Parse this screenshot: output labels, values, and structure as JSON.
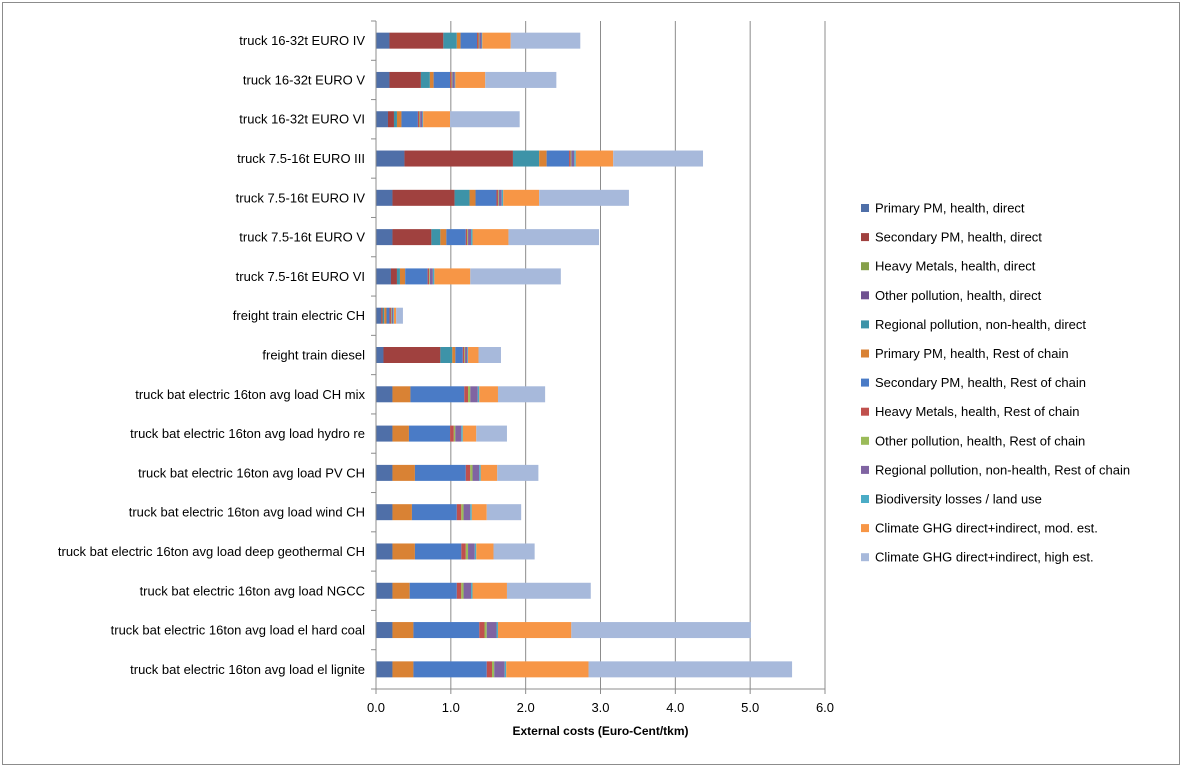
{
  "chart_data": {
    "type": "bar",
    "orientation": "horizontal",
    "stacked": true,
    "title": "",
    "xlabel": "External costs (Euro-Cent/tkm)",
    "ylabel": "",
    "xlim": [
      0,
      6
    ],
    "xticks": [
      "0.0",
      "1.0",
      "2.0",
      "3.0",
      "4.0",
      "5.0",
      "6.0"
    ],
    "grid": "vertical",
    "legend_position": "right",
    "categories": [
      "truck 16-32t EURO IV",
      "truck 16-32t EURO V",
      "truck 16-32t EURO VI",
      "truck 7.5-16t EURO III",
      "truck 7.5-16t EURO IV",
      "truck 7.5-16t EURO V",
      "truck 7.5-16t EURO VI",
      "freight train electric CH",
      "freight train diesel",
      "truck bat electric 16ton avg load CH mix",
      "truck bat electric 16ton avg load hydro re",
      "truck bat electric 16ton avg load PV CH",
      "truck bat electric 16ton avg load wind CH",
      "truck bat electric 16ton avg load deep geothermal CH",
      "truck bat electric 16ton avg load NGCC",
      "truck bat electric 16ton avg load el hard coal",
      "truck bat electric 16ton avg load el lignite"
    ],
    "series": [
      {
        "name": "Primary PM, health, direct",
        "color": "#4f6fa8",
        "values": [
          0.18,
          0.18,
          0.16,
          0.38,
          0.22,
          0.22,
          0.2,
          0.07,
          0.1,
          0.22,
          0.22,
          0.22,
          0.22,
          0.22,
          0.22,
          0.22,
          0.22
        ]
      },
      {
        "name": "Secondary PM, health, direct",
        "color": "#a0413f",
        "values": [
          0.72,
          0.42,
          0.08,
          1.45,
          0.83,
          0.52,
          0.08,
          0.02,
          0.76,
          0.0,
          0.0,
          0.0,
          0.0,
          0.0,
          0.0,
          0.0,
          0.0
        ]
      },
      {
        "name": "Heavy Metals, health, direct",
        "color": "#86a04a",
        "values": [
          0.0,
          0.0,
          0.0,
          0.0,
          0.0,
          0.0,
          0.0,
          0.0,
          0.0,
          0.0,
          0.0,
          0.0,
          0.0,
          0.0,
          0.0,
          0.0,
          0.0
        ]
      },
      {
        "name": "Other pollution, health, direct",
        "color": "#6f5190",
        "values": [
          0.0,
          0.0,
          0.0,
          0.0,
          0.0,
          0.0,
          0.0,
          0.0,
          0.0,
          0.0,
          0.0,
          0.0,
          0.0,
          0.0,
          0.0,
          0.0,
          0.0
        ]
      },
      {
        "name": "Regional pollution, non-health, direct",
        "color": "#3d93a8",
        "values": [
          0.18,
          0.12,
          0.04,
          0.35,
          0.2,
          0.12,
          0.04,
          0.02,
          0.16,
          0.0,
          0.0,
          0.0,
          0.0,
          0.0,
          0.0,
          0.0,
          0.0
        ]
      },
      {
        "name": "Primary PM, health, Rest of chain",
        "color": "#d98234",
        "values": [
          0.05,
          0.05,
          0.06,
          0.1,
          0.08,
          0.08,
          0.07,
          0.03,
          0.04,
          0.24,
          0.22,
          0.3,
          0.26,
          0.3,
          0.23,
          0.28,
          0.28
        ]
      },
      {
        "name": "Secondary PM, health, Rest of chain",
        "color": "#4a7bc6",
        "values": [
          0.22,
          0.22,
          0.22,
          0.3,
          0.28,
          0.26,
          0.3,
          0.04,
          0.1,
          0.72,
          0.55,
          0.68,
          0.6,
          0.62,
          0.63,
          0.88,
          0.98
        ]
      },
      {
        "name": "Heavy Metals, health, Rest of chain",
        "color": "#c0504d",
        "values": [
          0.02,
          0.02,
          0.02,
          0.02,
          0.02,
          0.02,
          0.02,
          0.02,
          0.02,
          0.05,
          0.05,
          0.06,
          0.06,
          0.06,
          0.06,
          0.07,
          0.07
        ]
      },
      {
        "name": "Other pollution, health, Rest of chain",
        "color": "#9bbb59",
        "values": [
          0.01,
          0.01,
          0.01,
          0.01,
          0.01,
          0.01,
          0.01,
          0.01,
          0.01,
          0.03,
          0.02,
          0.03,
          0.03,
          0.03,
          0.03,
          0.03,
          0.03
        ]
      },
      {
        "name": "Regional pollution, non-health, Rest of chain",
        "color": "#8064a2",
        "values": [
          0.03,
          0.03,
          0.03,
          0.04,
          0.04,
          0.04,
          0.04,
          0.02,
          0.03,
          0.1,
          0.08,
          0.09,
          0.09,
          0.09,
          0.1,
          0.13,
          0.14
        ]
      },
      {
        "name": "Biodiversity losses / land use",
        "color": "#4bacc6",
        "values": [
          0.01,
          0.01,
          0.01,
          0.02,
          0.02,
          0.02,
          0.02,
          0.01,
          0.01,
          0.02,
          0.02,
          0.02,
          0.02,
          0.02,
          0.02,
          0.02,
          0.02
        ]
      },
      {
        "name": "Climate GHG direct+indirect, mod. est.",
        "color": "#f79646",
        "values": [
          0.38,
          0.4,
          0.36,
          0.5,
          0.48,
          0.48,
          0.48,
          0.03,
          0.14,
          0.25,
          0.18,
          0.22,
          0.2,
          0.23,
          0.46,
          0.98,
          1.1
        ]
      },
      {
        "name": "Climate GHG direct+indirect, high est.",
        "color": "#a7b9db",
        "values": [
          0.93,
          0.95,
          0.93,
          1.2,
          1.2,
          1.21,
          1.21,
          0.09,
          0.3,
          0.63,
          0.41,
          0.55,
          0.46,
          0.55,
          1.12,
          2.4,
          2.72
        ]
      }
    ]
  }
}
